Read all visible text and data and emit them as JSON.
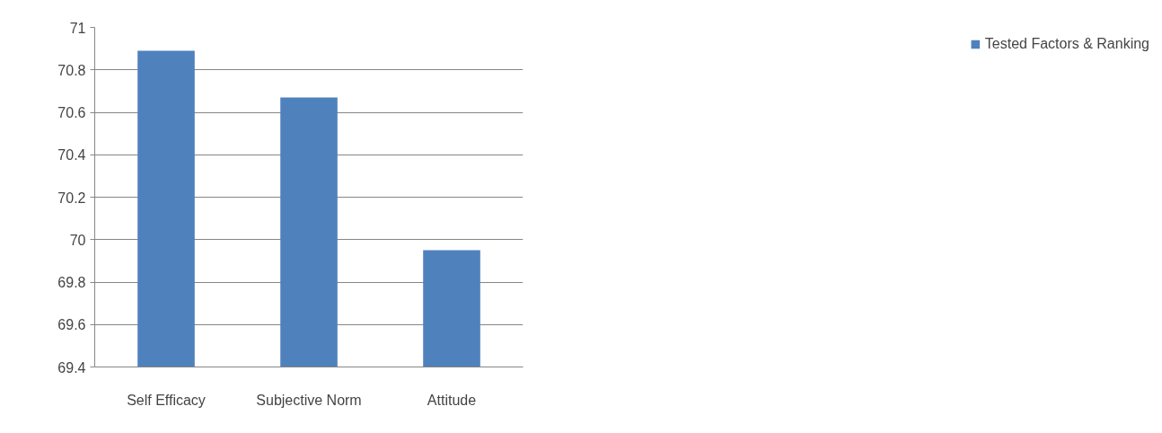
{
  "chart_data": {
    "type": "bar",
    "categories": [
      "Self Efficacy",
      "Subjective Norm",
      "Attitude"
    ],
    "series": [
      {
        "name": "Tested Factors & Ranking",
        "color": "#4f81bd",
        "values": [
          70.89,
          70.67,
          69.95
        ]
      }
    ],
    "ylim": [
      69.4,
      71
    ],
    "yticks": [
      69.4,
      69.6,
      69.8,
      70,
      70.2,
      70.4,
      70.6,
      70.8,
      71
    ],
    "grid": "y",
    "legend": "right"
  }
}
